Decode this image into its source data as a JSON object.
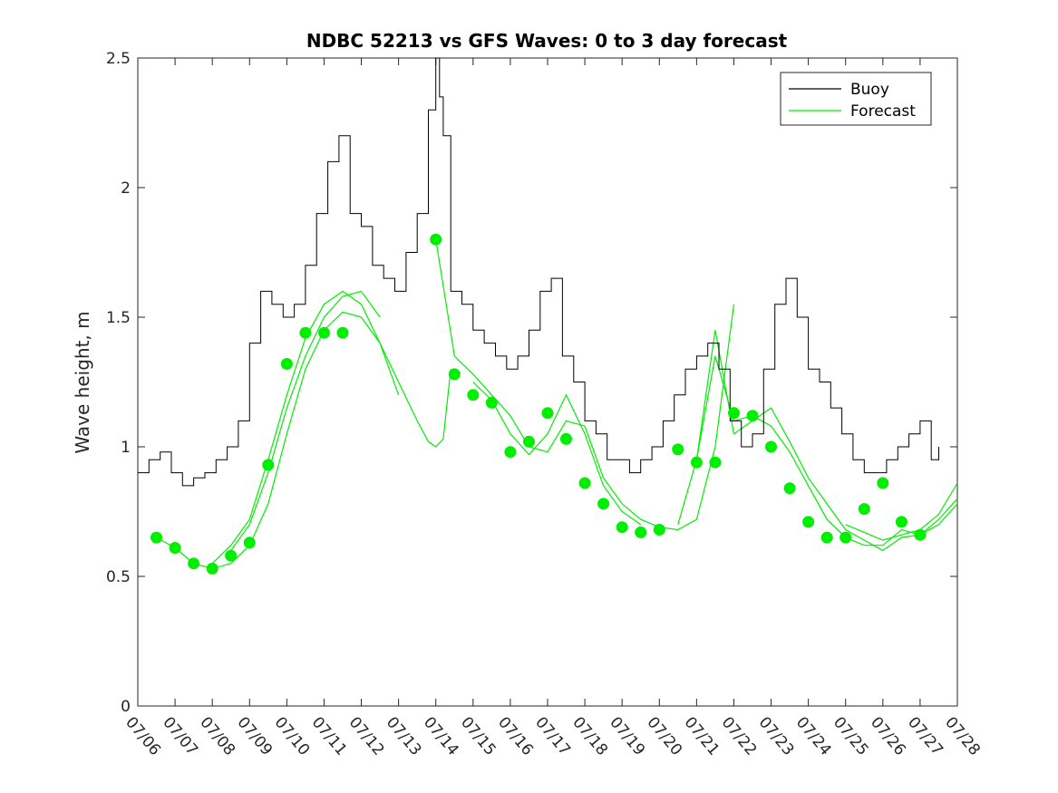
{
  "chart_data": {
    "type": "line",
    "title": "NDBC 52213 vs GFS Waves: 0 to 3 day forecast",
    "xlabel": "",
    "ylabel": "Wave height, m",
    "ylim": [
      0,
      2.5
    ],
    "yticks": [
      "0",
      "0.5",
      "1",
      "1.5",
      "2",
      "2.5"
    ],
    "xticks": [
      "07/06",
      "07/07",
      "07/08",
      "07/09",
      "07/10",
      "07/11",
      "07/12",
      "07/13",
      "07/14",
      "07/15",
      "07/16",
      "07/17",
      "07/18",
      "07/19",
      "07/20",
      "07/21",
      "07/22",
      "07/23",
      "07/24",
      "07/25",
      "07/26",
      "07/27",
      "07/28"
    ],
    "xrange_days": [
      0,
      22
    ],
    "grid": false,
    "legend": {
      "position": "top-right",
      "entries": [
        "Buoy",
        "Forecast"
      ]
    },
    "colors": {
      "buoy": "#000000",
      "forecast": "#00ee00"
    },
    "buoy_series": {
      "name": "Buoy",
      "x": [
        0,
        0.3,
        0.6,
        0.9,
        1.2,
        1.5,
        1.8,
        2.1,
        2.4,
        2.7,
        3.0,
        3.3,
        3.6,
        3.9,
        4.2,
        4.5,
        4.8,
        5.1,
        5.4,
        5.7,
        6.0,
        6.3,
        6.6,
        6.9,
        7.2,
        7.5,
        7.8,
        8.0,
        8.1,
        8.2,
        8.4,
        8.7,
        9.0,
        9.3,
        9.6,
        9.9,
        10.2,
        10.5,
        10.8,
        11.1,
        11.4,
        11.7,
        12.0,
        12.3,
        12.6,
        12.9,
        13.2,
        13.5,
        13.8,
        14.1,
        14.4,
        14.7,
        15.0,
        15.3,
        15.6,
        15.9,
        16.2,
        16.5,
        16.8,
        17.1,
        17.4,
        17.7,
        18.0,
        18.3,
        18.6,
        18.9,
        19.2,
        19.5,
        19.8,
        20.1,
        20.4,
        20.7,
        21.0,
        21.3,
        21.5
      ],
      "values": [
        0.9,
        0.95,
        0.98,
        0.9,
        0.85,
        0.88,
        0.9,
        0.95,
        1.0,
        1.1,
        1.4,
        1.6,
        1.55,
        1.5,
        1.55,
        1.7,
        1.9,
        2.1,
        2.2,
        1.9,
        1.85,
        1.7,
        1.65,
        1.6,
        1.75,
        1.9,
        2.3,
        2.5,
        2.35,
        2.2,
        1.6,
        1.55,
        1.45,
        1.4,
        1.35,
        1.3,
        1.35,
        1.45,
        1.6,
        1.65,
        1.35,
        1.25,
        1.1,
        1.05,
        0.95,
        0.95,
        0.9,
        0.95,
        1.0,
        1.1,
        1.2,
        1.3,
        1.35,
        1.4,
        1.3,
        1.1,
        1.0,
        1.05,
        1.3,
        1.55,
        1.65,
        1.5,
        1.3,
        1.25,
        1.15,
        1.05,
        0.95,
        0.9,
        0.9,
        0.95,
        1.0,
        1.05,
        1.1,
        0.95,
        1.0
      ]
    },
    "forecast_series": [
      {
        "name": "",
        "x": [
          0.5,
          1,
          1.5,
          2,
          2.5,
          3,
          3.5,
          4,
          4.5,
          5,
          5.5,
          6,
          6.5,
          7,
          7.5,
          7.8,
          8,
          8.2,
          8.4
        ],
        "values": [
          0.65,
          0.61,
          0.55,
          0.53,
          0.55,
          0.62,
          0.78,
          1.05,
          1.3,
          1.45,
          1.52,
          1.5,
          1.4,
          1.25,
          1.1,
          1.02,
          1.0,
          1.03,
          1.3
        ]
      },
      {
        "name": "",
        "x": [
          2,
          2.5,
          3,
          3.5,
          4,
          4.5,
          5,
          5.5,
          6,
          6.5,
          7
        ],
        "values": [
          0.55,
          0.62,
          0.72,
          0.95,
          1.2,
          1.42,
          1.55,
          1.6,
          1.55,
          1.4,
          1.2
        ]
      },
      {
        "name": "",
        "x": [
          2.5,
          3,
          3.5,
          4,
          4.5,
          5,
          5.5,
          6,
          6.5
        ],
        "values": [
          0.6,
          0.7,
          0.9,
          1.15,
          1.35,
          1.5,
          1.58,
          1.6,
          1.5
        ]
      },
      {
        "name": "",
        "x": [
          8,
          8.5,
          9,
          9.5,
          10,
          10.5,
          11,
          11.5,
          12,
          12.5,
          13,
          13.5,
          14,
          14.5,
          15,
          15.5,
          16
        ],
        "values": [
          1.8,
          1.35,
          1.28,
          1.2,
          1.12,
          1.0,
          0.98,
          1.1,
          1.08,
          0.88,
          0.78,
          0.72,
          0.69,
          0.68,
          0.72,
          1.0,
          1.55
        ]
      },
      {
        "name": "",
        "x": [
          9,
          9.5,
          10,
          10.5,
          11,
          11.5,
          12,
          12.5,
          13,
          13.5
        ],
        "values": [
          1.25,
          1.18,
          1.05,
          0.97,
          1.05,
          1.2,
          1.05,
          0.85,
          0.75,
          0.7
        ]
      },
      {
        "name": "",
        "x": [
          14.5,
          15,
          15.5,
          16,
          16.5,
          17,
          17.5,
          18,
          18.5,
          19,
          19.5,
          20,
          20.5,
          21,
          21.5,
          22
        ],
        "values": [
          0.7,
          0.95,
          1.35,
          1.1,
          1.12,
          1.08,
          0.98,
          0.85,
          0.72,
          0.65,
          0.62,
          0.62,
          0.68,
          0.66,
          0.72,
          0.8
        ]
      },
      {
        "name": "",
        "x": [
          15,
          15.5,
          16,
          16.5,
          17,
          17.5,
          18,
          18.5,
          19,
          19.5,
          20,
          20.5,
          21,
          21.5,
          22
        ],
        "values": [
          0.95,
          1.45,
          1.05,
          1.1,
          1.15,
          1.02,
          0.88,
          0.78,
          0.68,
          0.64,
          0.6,
          0.65,
          0.66,
          0.7,
          0.78
        ]
      },
      {
        "name": "",
        "x": [
          19,
          19.5,
          20,
          20.5,
          21,
          21.5,
          22
        ],
        "values": [
          0.7,
          0.67,
          0.64,
          0.66,
          0.68,
          0.74,
          0.86
        ]
      }
    ],
    "forecast_markers": {
      "x": [
        0.5,
        1,
        1.5,
        2,
        2.5,
        3,
        3.5,
        4,
        4.5,
        5,
        5.5,
        8,
        8.5,
        9,
        9.5,
        10,
        10.5,
        11,
        11.5,
        12,
        12.5,
        13,
        13.5,
        14,
        14.5,
        15,
        15.5,
        16,
        16.5,
        17,
        17.5,
        18,
        18.5,
        19,
        19.5,
        20,
        20.5,
        21
      ],
      "values": [
        0.65,
        0.61,
        0.55,
        0.53,
        0.58,
        0.63,
        0.93,
        1.32,
        1.44,
        1.44,
        1.44,
        1.8,
        1.28,
        1.2,
        1.17,
        0.98,
        1.02,
        1.13,
        1.03,
        0.86,
        0.78,
        0.69,
        0.67,
        0.68,
        0.99,
        0.94,
        0.94,
        1.13,
        1.12,
        1.0,
        0.84,
        0.71,
        0.65,
        0.65,
        0.76,
        0.86,
        0.71,
        0.66
      ]
    }
  }
}
